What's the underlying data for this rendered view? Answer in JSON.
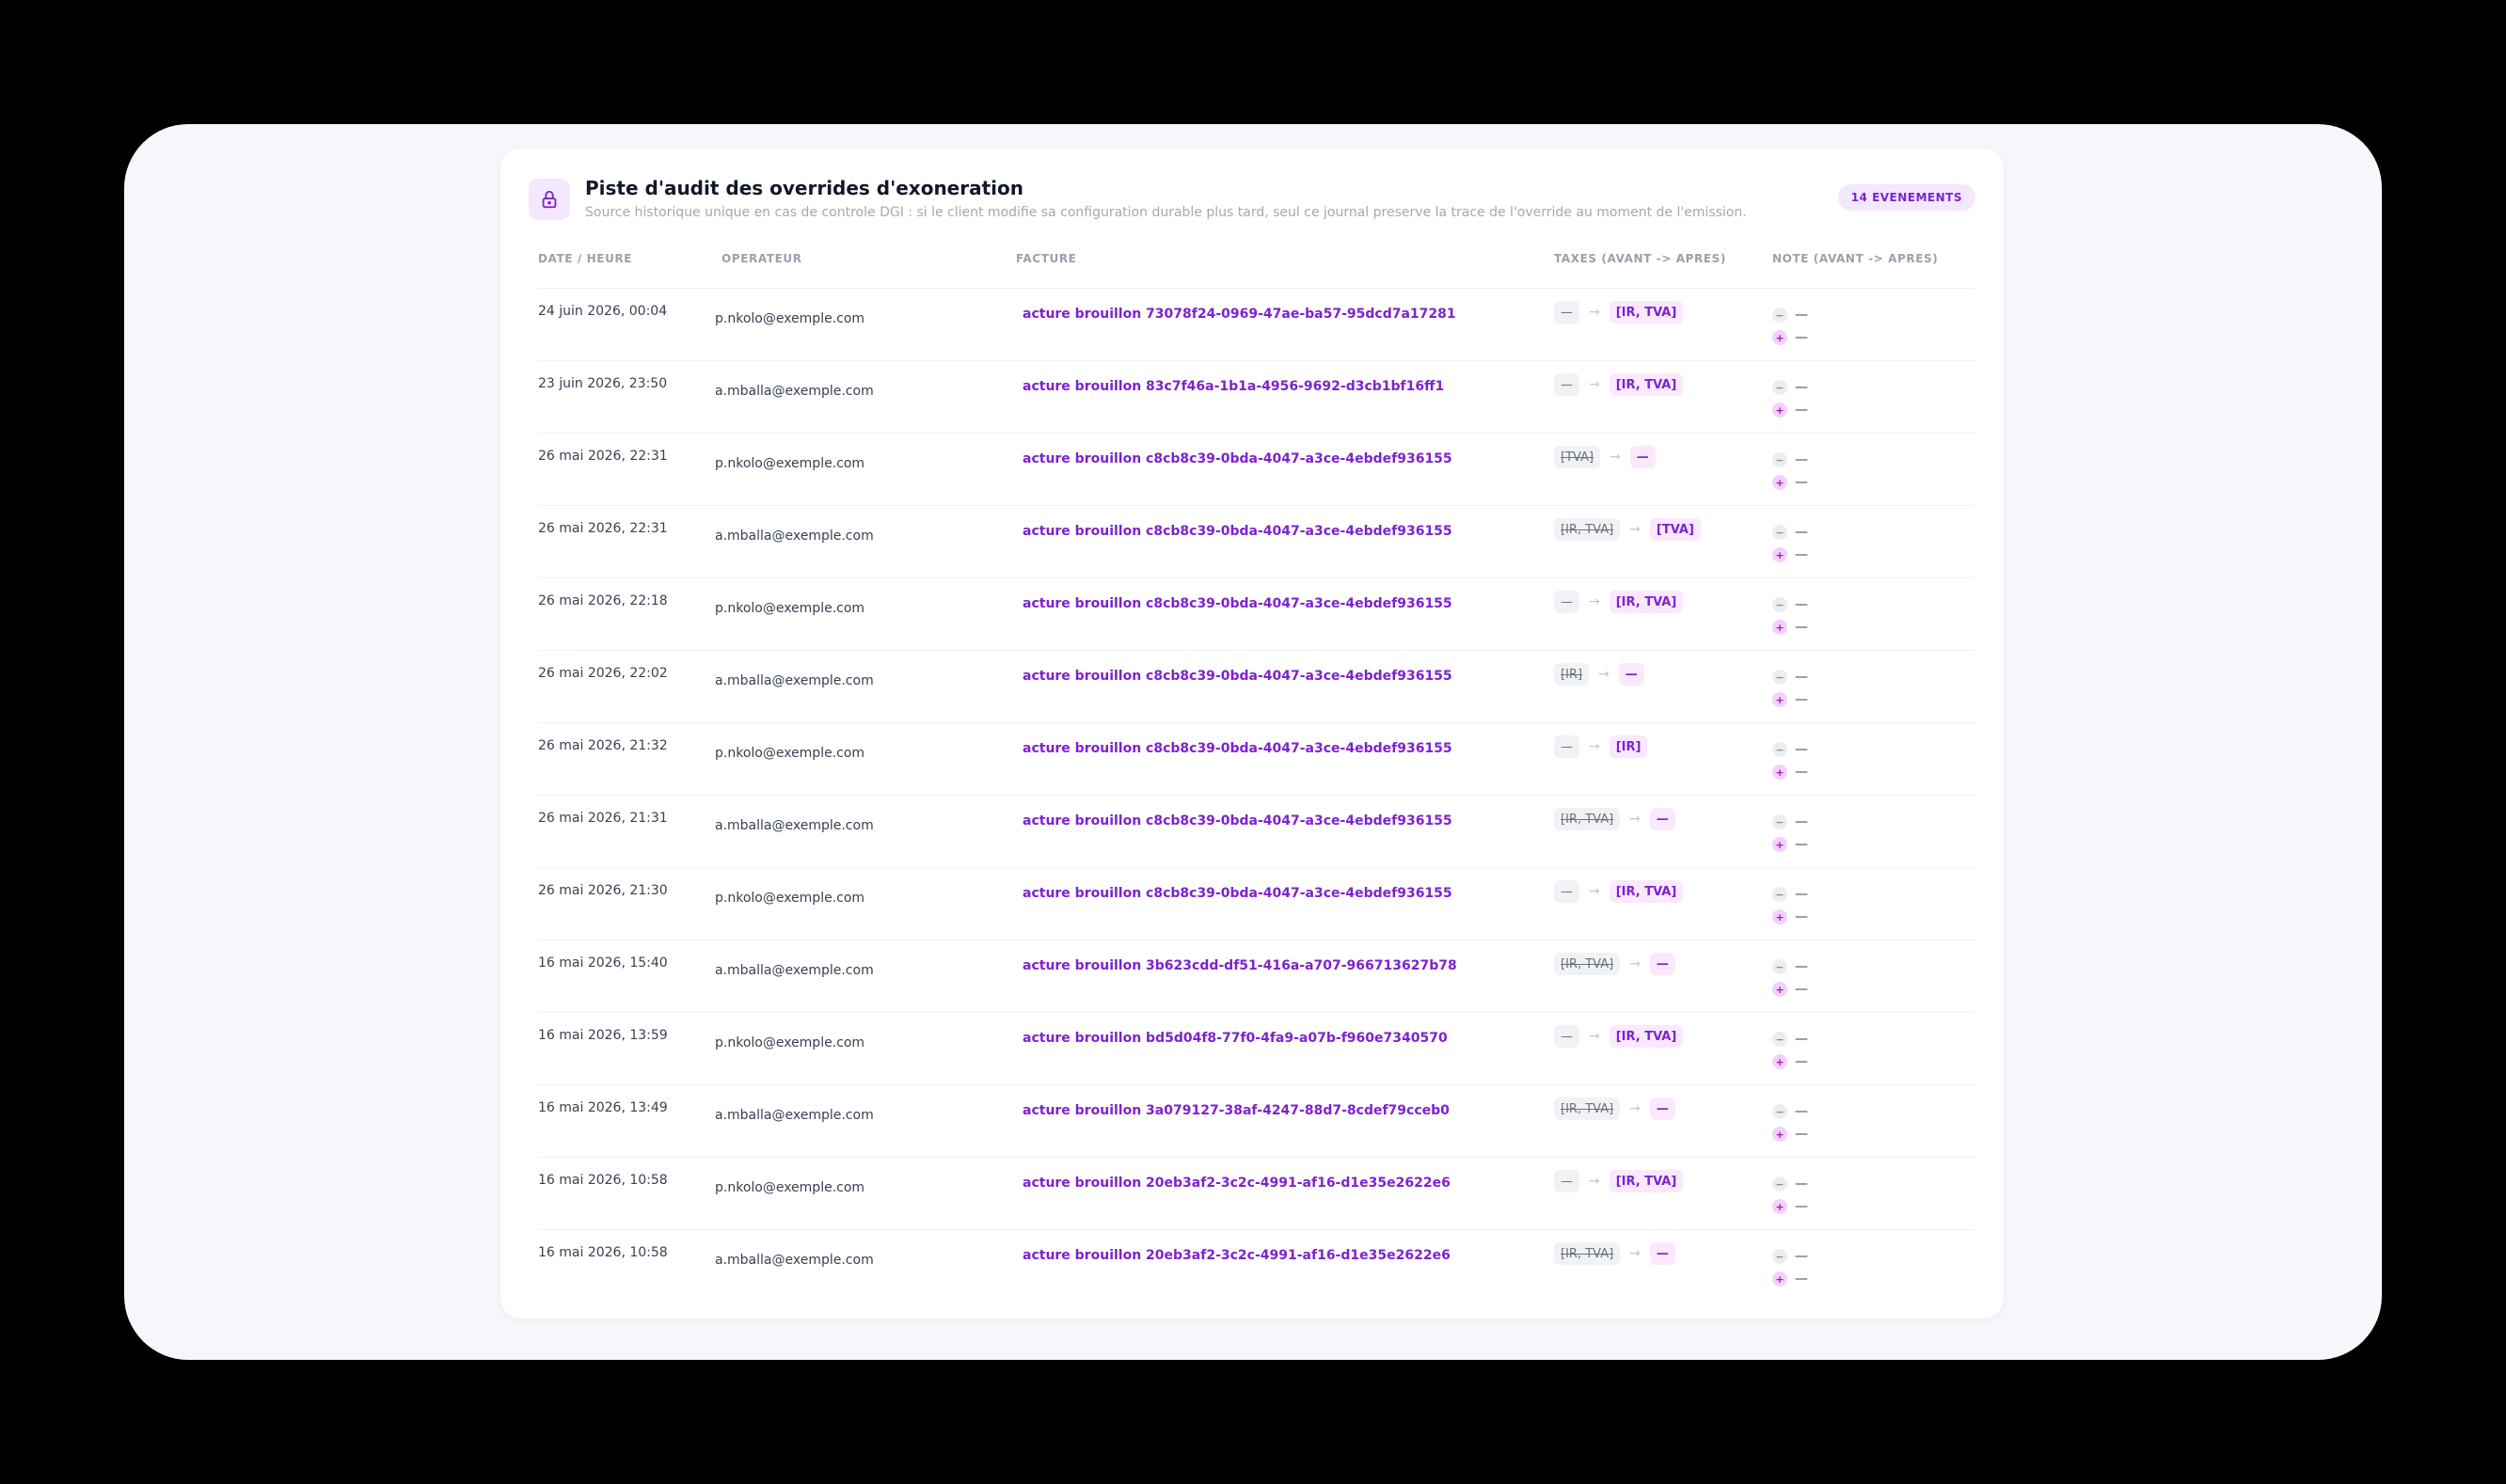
{
  "header": {
    "icon": "lock-icon",
    "title": "Piste d'audit des overrides d'exoneration",
    "subtitle": "Source historique unique en cas de controle DGI : si le client modifie sa configuration durable plus tard, seul ce journal preserve la trace de l'override au moment de l'emission.",
    "count_label": "14 EVENEMENTS"
  },
  "colors": {
    "accent": "#7e22ce",
    "accent_bg": "#f3e8ff",
    "muted": "#9aa0ac"
  },
  "columns": {
    "date": "DATE / HEURE",
    "operator": "OPERATEUR",
    "invoice": "FACTURE",
    "taxes": "TAXES (AVANT -> APRES)",
    "note": "NOTE (AVANT -> APRES)"
  },
  "rows": [
    {
      "date": "24 juin 2026, 00:04",
      "operator": "p.nkolo@exemple.com",
      "invoice": "acture brouillon 73078f24-0969-47ae-ba57-95dcd7a17281",
      "tax_before": "—",
      "tax_before_struck": false,
      "tax_after": "[IR, TVA]",
      "note_before": "—",
      "note_after": "—"
    },
    {
      "date": "23 juin 2026, 23:50",
      "operator": "a.mballa@exemple.com",
      "invoice": "acture brouillon 83c7f46a-1b1a-4956-9692-d3cb1bf16ff1",
      "tax_before": "—",
      "tax_before_struck": false,
      "tax_after": "[IR, TVA]",
      "note_before": "—",
      "note_after": "—"
    },
    {
      "date": "26 mai 2026, 22:31",
      "operator": "p.nkolo@exemple.com",
      "invoice": "acture brouillon c8cb8c39-0bda-4047-a3ce-4ebdef936155",
      "tax_before": "[TVA]",
      "tax_before_struck": true,
      "tax_after": "—",
      "note_before": "—",
      "note_after": "—"
    },
    {
      "date": "26 mai 2026, 22:31",
      "operator": "a.mballa@exemple.com",
      "invoice": "acture brouillon c8cb8c39-0bda-4047-a3ce-4ebdef936155",
      "tax_before": "[IR, TVA]",
      "tax_before_struck": true,
      "tax_after": "[TVA]",
      "note_before": "—",
      "note_after": "—"
    },
    {
      "date": "26 mai 2026, 22:18",
      "operator": "p.nkolo@exemple.com",
      "invoice": "acture brouillon c8cb8c39-0bda-4047-a3ce-4ebdef936155",
      "tax_before": "—",
      "tax_before_struck": false,
      "tax_after": "[IR, TVA]",
      "note_before": "—",
      "note_after": "—"
    },
    {
      "date": "26 mai 2026, 22:02",
      "operator": "a.mballa@exemple.com",
      "invoice": "acture brouillon c8cb8c39-0bda-4047-a3ce-4ebdef936155",
      "tax_before": "[IR]",
      "tax_before_struck": true,
      "tax_after": "—",
      "note_before": "—",
      "note_after": "—"
    },
    {
      "date": "26 mai 2026, 21:32",
      "operator": "p.nkolo@exemple.com",
      "invoice": "acture brouillon c8cb8c39-0bda-4047-a3ce-4ebdef936155",
      "tax_before": "—",
      "tax_before_struck": false,
      "tax_after": "[IR]",
      "note_before": "—",
      "note_after": "—"
    },
    {
      "date": "26 mai 2026, 21:31",
      "operator": "a.mballa@exemple.com",
      "invoice": "acture brouillon c8cb8c39-0bda-4047-a3ce-4ebdef936155",
      "tax_before": "[IR, TVA]",
      "tax_before_struck": true,
      "tax_after": "—",
      "note_before": "—",
      "note_after": "—"
    },
    {
      "date": "26 mai 2026, 21:30",
      "operator": "p.nkolo@exemple.com",
      "invoice": "acture brouillon c8cb8c39-0bda-4047-a3ce-4ebdef936155",
      "tax_before": "—",
      "tax_before_struck": false,
      "tax_after": "[IR, TVA]",
      "note_before": "—",
      "note_after": "—"
    },
    {
      "date": "16 mai 2026, 15:40",
      "operator": "a.mballa@exemple.com",
      "invoice": "acture brouillon 3b623cdd-df51-416a-a707-966713627b78",
      "tax_before": "[IR, TVA]",
      "tax_before_struck": true,
      "tax_after": "—",
      "note_before": "—",
      "note_after": "—"
    },
    {
      "date": "16 mai 2026, 13:59",
      "operator": "p.nkolo@exemple.com",
      "invoice": "acture brouillon bd5d04f8-77f0-4fa9-a07b-f960e7340570",
      "tax_before": "—",
      "tax_before_struck": false,
      "tax_after": "[IR, TVA]",
      "note_before": "—",
      "note_after": "—"
    },
    {
      "date": "16 mai 2026, 13:49",
      "operator": "a.mballa@exemple.com",
      "invoice": "acture brouillon 3a079127-38af-4247-88d7-8cdef79cceb0",
      "tax_before": "[IR, TVA]",
      "tax_before_struck": true,
      "tax_after": "—",
      "note_before": "—",
      "note_after": "—"
    },
    {
      "date": "16 mai 2026, 10:58",
      "operator": "p.nkolo@exemple.com",
      "invoice": "acture brouillon 20eb3af2-3c2c-4991-af16-d1e35e2622e6",
      "tax_before": "—",
      "tax_before_struck": false,
      "tax_after": "[IR, TVA]",
      "note_before": "—",
      "note_after": "—"
    },
    {
      "date": "16 mai 2026, 10:58",
      "operator": "a.mballa@exemple.com",
      "invoice": "acture brouillon 20eb3af2-3c2c-4991-af16-d1e35e2622e6",
      "tax_before": "[IR, TVA]",
      "tax_before_struck": true,
      "tax_after": "—",
      "note_before": "—",
      "note_after": "—"
    }
  ]
}
